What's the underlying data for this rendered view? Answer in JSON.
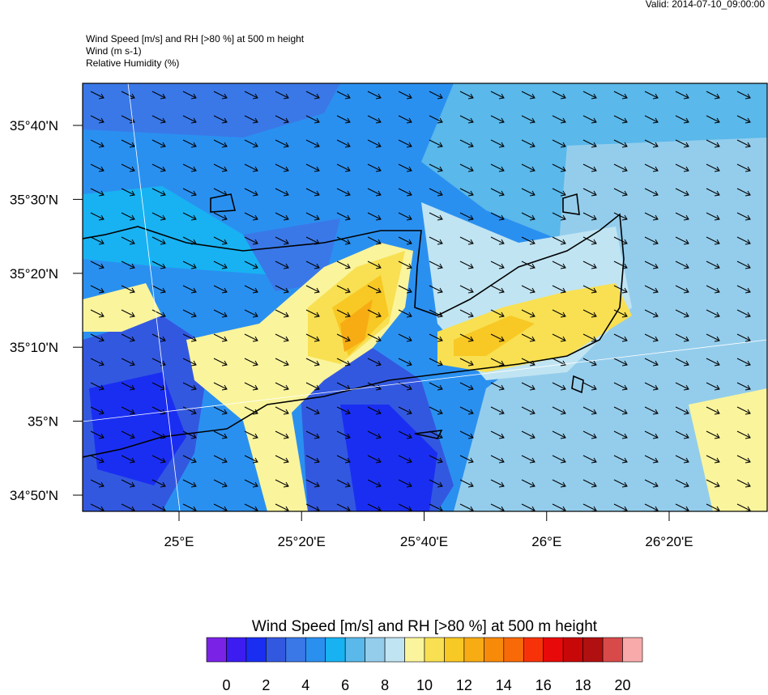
{
  "valid": "Valid: 2014-07-10_09:00:00",
  "header": {
    "lines": [
      "Wind Speed [m/s] and RH [>80 %] at 500 m height",
      "Wind   (m s-1)",
      "Relative Humidity   (%)"
    ]
  },
  "map": {
    "lat_ticks": [
      {
        "value": 35.6667,
        "label": "35°40'N"
      },
      {
        "value": 35.5,
        "label": "35°30'N"
      },
      {
        "value": 35.3333,
        "label": "35°20'N"
      },
      {
        "value": 35.1667,
        "label": "35°10'N"
      },
      {
        "value": 35,
        "label": "35°N"
      },
      {
        "value": 34.8333,
        "label": "34°50'N"
      }
    ],
    "lon_ticks": [
      {
        "value": 25,
        "label": "25°E"
      },
      {
        "value": 25.3333,
        "label": "25°20'E"
      },
      {
        "value": 25.6667,
        "label": "25°40'E"
      },
      {
        "value": 26,
        "label": "26°E"
      },
      {
        "value": 26.3333,
        "label": "26°20'E"
      }
    ]
  },
  "colorbar": {
    "title": "Wind Speed [m/s] and RH [>80 %] at 500 m height",
    "ticks": [
      0,
      2,
      4,
      6,
      8,
      10,
      12,
      14,
      16,
      18,
      20
    ],
    "colors": [
      "#7a22e6",
      "#3c1cf0",
      "#1a2ef2",
      "#3358e0",
      "#3a78e8",
      "#2a90f0",
      "#18b2f2",
      "#5ab8ea",
      "#94cdec",
      "#c0e4f2",
      "#faf49c",
      "#f8e052",
      "#f8c824",
      "#f8ac14",
      "#f88a0a",
      "#f86a08",
      "#f83208",
      "#e80a0a",
      "#c80808",
      "#b01010",
      "#d84a4a",
      "#f8aaaa"
    ]
  }
}
